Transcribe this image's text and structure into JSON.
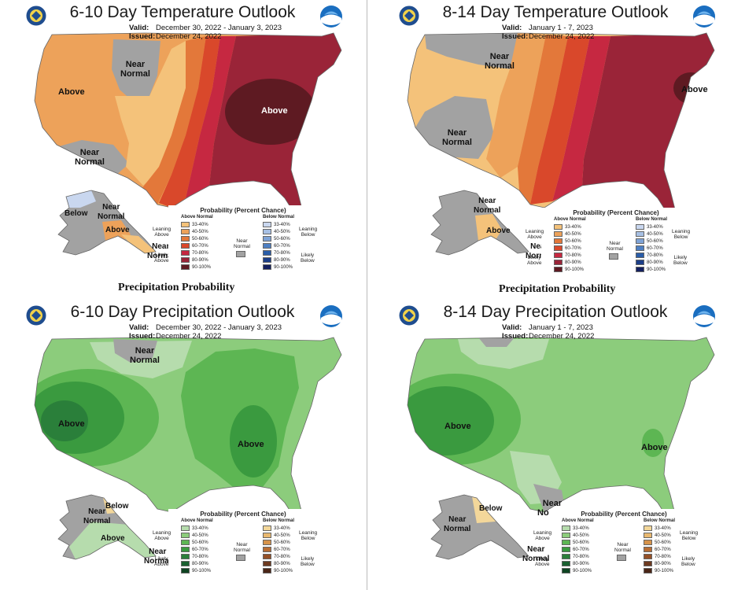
{
  "panels": {
    "tl": {
      "title": "6-10 Day Temperature Outlook",
      "valid_label": "Valid:",
      "valid": "December 30, 2022 - January 3, 2023",
      "issued_label": "Issued:",
      "issued": "December 24, 2022",
      "labels": {
        "above_west": "Above",
        "near_normal_north_1": "Near",
        "near_normal_north_2": "Normal",
        "above_east": "Above",
        "near_normal_sw_1": "Near",
        "near_normal_sw_2": "Normal",
        "ak_below": "Below",
        "ak_near_1": "Near",
        "ak_near_2": "Normal",
        "ak_above": "Above",
        "ak_panhandle_1": "Near",
        "ak_panhandle_2": "Normal"
      }
    },
    "tr": {
      "title": "8-14 Day Temperature Outlook",
      "valid_label": "Valid:",
      "valid": "January 1 - 7, 2023",
      "issued_label": "Issued:",
      "issued": "December 24, 2022",
      "labels": {
        "near_normal_north_1": "Near",
        "near_normal_north_2": "Normal",
        "near_normal_sw_1": "Near",
        "near_normal_sw_2": "Normal",
        "above_ne": "Above",
        "ak_near_1": "Near",
        "ak_near_2": "Normal",
        "ak_above": "Above",
        "ak_panhandle_1": "Near",
        "ak_panhandle_2": "Normal"
      }
    },
    "bl": {
      "title": "6-10 Day Precipitation Outlook",
      "valid_label": "Valid:",
      "valid": "December 30, 2022 - January 3, 2023",
      "issued_label": "Issued:",
      "issued": "December 24, 2022",
      "labels": {
        "near_normal_north_1": "Near",
        "near_normal_north_2": "Normal",
        "above_west": "Above",
        "above_east": "Above",
        "ak_near_1": "Near",
        "ak_near_2": "Normal",
        "ak_below": "Below",
        "ak_above": "Above",
        "ak_panhandle_1": "Near",
        "ak_panhandle_2": "Normal"
      }
    },
    "br": {
      "title": "8-14 Day Precipitation Outlook",
      "valid_label": "Valid:",
      "valid": "January 1 - 7, 2023",
      "issued_label": "Issued:",
      "issued": "December 24, 2022",
      "labels": {
        "above_west": "Above",
        "above_se": "Above",
        "near_normal_sw_1": "Near",
        "near_normal_sw_2": "Normal",
        "ak_near_1": "Near",
        "ak_near_2": "Normal",
        "ak_below": "Below",
        "ak_panhandle_1": "Near",
        "ak_panhandle_2": "Normal"
      }
    }
  },
  "section_headings": {
    "left": "Precipitation Probability",
    "right": "Precipitation Probability"
  },
  "legend": {
    "title": "Probability (Percent Chance)",
    "above_normal": "Above Normal",
    "below_normal": "Below Normal",
    "near_normal_1": "Near",
    "near_normal_2": "Normal",
    "leaning_above_1": "Leaning",
    "leaning_above_2": "Above",
    "likely_above_1": "Likely",
    "likely_above_2": "Above",
    "leaning_below_1": "Leaning",
    "leaning_below_2": "Below",
    "likely_below_1": "Likely",
    "likely_below_2": "Below",
    "ranges": [
      "33-40%",
      "40-50%",
      "50-60%",
      "60-70%",
      "70-80%",
      "80-90%",
      "90-100%"
    ]
  },
  "colors": {
    "temp_above": [
      "#f4c27a",
      "#eda25a",
      "#e3783a",
      "#d9482b",
      "#c62841",
      "#9a2438",
      "#5e1a22"
    ],
    "temp_below": [
      "#c9d7ef",
      "#a7c0e4",
      "#7fa3d6",
      "#4e7fc2",
      "#2a5da8",
      "#1c3e88",
      "#14205f"
    ],
    "precip_above": [
      "#b6dcad",
      "#8ccc7c",
      "#5db653",
      "#3a9a3f",
      "#2a7f3a",
      "#1a6030",
      "#0e4422"
    ],
    "precip_below": [
      "#f3d79a",
      "#e8b870",
      "#d6934b",
      "#b86d34",
      "#955027",
      "#6d3a20",
      "#4a2617"
    ],
    "near_normal": "#a2a2a2"
  }
}
